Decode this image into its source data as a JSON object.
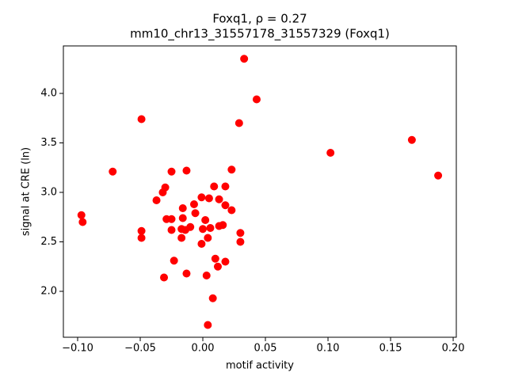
{
  "chart_data": {
    "type": "scatter",
    "title": "Foxq1, ρ = 0.27",
    "subtitle": "mm10_chr13_31557178_31557329 (Foxq1)",
    "x_label": "motif activity",
    "y_label": "signal at CRE (ln)",
    "color": "#ff0000",
    "xlim": [
      -0.1114,
      0.2025
    ],
    "ylim": [
      1.536,
      4.48
    ],
    "xticks": [
      {
        "value": -0.1,
        "label": "−0.10"
      },
      {
        "value": -0.05,
        "label": "−0.05"
      },
      {
        "value": 0,
        "label": "0.00"
      },
      {
        "value": 0.05,
        "label": "0.05"
      },
      {
        "value": 0.1,
        "label": "0.10"
      },
      {
        "value": 0.15,
        "label": "0.15"
      },
      {
        "value": 0.2,
        "label": "0.20"
      }
    ],
    "yticks": [
      {
        "value": 2,
        "label": "2.0"
      },
      2.5,
      {
        "value": 3,
        "label": "3.0"
      },
      3.5,
      {
        "value": 4,
        "label": "4.0"
      }
    ],
    "x": [
      -0.097,
      -0.096,
      -0.072,
      -0.049,
      -0.049,
      -0.049,
      0.033,
      0.043,
      0.029,
      0.102,
      0.167,
      0.188,
      -0.025,
      -0.013,
      0.023,
      -0.03,
      -0.032,
      -0.037,
      0.009,
      0.018,
      -0.001,
      0.005,
      0.013,
      -0.007,
      0.018,
      -0.016,
      0.023,
      -0.006,
      -0.016,
      0.002,
      -0.029,
      -0.025,
      -0.025,
      -0.01,
      -0.017,
      -0.014,
      0.0,
      0.006,
      0.013,
      0.016,
      0.03,
      -0.017,
      0.004,
      0.03,
      -0.001,
      -0.023,
      0.01,
      0.018,
      0.012,
      -0.013,
      -0.031,
      0.003,
      0.008,
      0.004
    ],
    "values": [
      2.77,
      2.7,
      3.21,
      3.74,
      2.61,
      2.54,
      4.35,
      3.94,
      3.7,
      3.4,
      3.53,
      3.17,
      3.21,
      3.22,
      3.23,
      3.05,
      3.0,
      2.92,
      3.06,
      3.06,
      2.95,
      2.94,
      2.93,
      2.88,
      2.87,
      2.84,
      2.82,
      2.79,
      2.74,
      2.72,
      2.73,
      2.73,
      2.62,
      2.65,
      2.63,
      2.62,
      2.63,
      2.64,
      2.66,
      2.67,
      2.59,
      2.54,
      2.54,
      2.5,
      2.48,
      2.31,
      2.33,
      2.3,
      2.25,
      2.18,
      2.14,
      2.16,
      1.93,
      1.66
    ]
  }
}
